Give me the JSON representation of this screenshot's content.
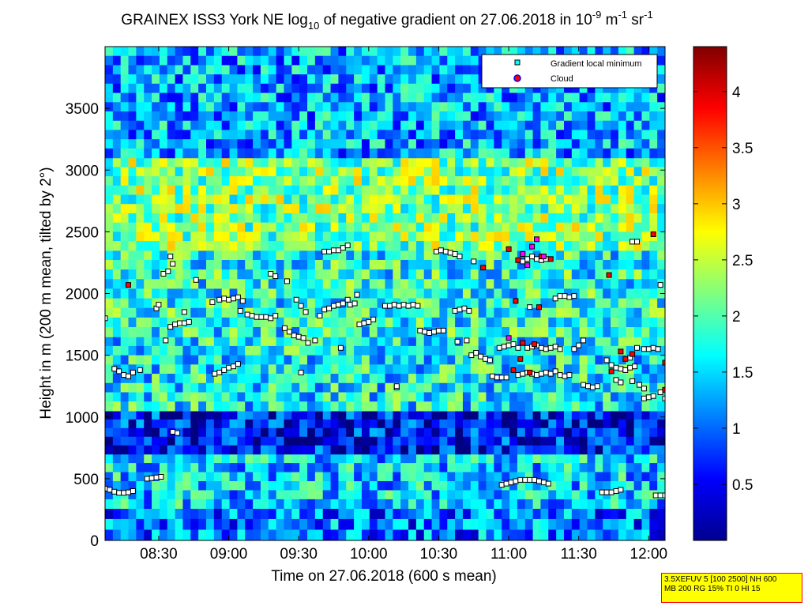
{
  "chart_data": {
    "type": "heatmap",
    "title_parts": {
      "pre": "GRAINEX ISS3 York NE log",
      "sub": "10",
      "mid": " of negative gradient on 27.06.2018 in 10",
      "sup1": "-9",
      "mid2": " m",
      "sup2": "-1",
      "mid3": " sr",
      "sup3": "-1"
    },
    "xlabel": "Time on 27.06.2018 (600 s mean)",
    "ylabel": "Height in m (200 m mean, tilted by 2°)",
    "xlim": [
      "08:07",
      "12:07"
    ],
    "ylim": [
      0,
      4000
    ],
    "x_ticks": [
      {
        "t": "08:30",
        "label": "08:30"
      },
      {
        "t": "09:00",
        "label": "09:00"
      },
      {
        "t": "09:30",
        "label": "09:30"
      },
      {
        "t": "10:00",
        "label": "10:00"
      },
      {
        "t": "10:30",
        "label": "10:30"
      },
      {
        "t": "11:00",
        "label": "11:00"
      },
      {
        "t": "11:30",
        "label": "11:30"
      },
      {
        "t": "12:00",
        "label": "12:00"
      }
    ],
    "y_ticks": [
      {
        "v": 0,
        "label": "0"
      },
      {
        "v": 500,
        "label": "500"
      },
      {
        "v": 1000,
        "label": "1000"
      },
      {
        "v": 1500,
        "label": "1500"
      },
      {
        "v": 2000,
        "label": "2000"
      },
      {
        "v": 2500,
        "label": "2500"
      },
      {
        "v": 3000,
        "label": "3000"
      },
      {
        "v": 3500,
        "label": "3500"
      }
    ],
    "colorbar": {
      "colormap": "jet",
      "range": [
        0,
        4.4
      ],
      "ticks": [
        {
          "v": 0.5,
          "label": "0.5"
        },
        {
          "v": 1,
          "label": "1"
        },
        {
          "v": 1.5,
          "label": "1.5"
        },
        {
          "v": 2,
          "label": "2"
        },
        {
          "v": 2.5,
          "label": "2.5"
        },
        {
          "v": 3,
          "label": "3"
        },
        {
          "v": 3.5,
          "label": "3.5"
        },
        {
          "v": 4,
          "label": "4"
        }
      ]
    },
    "legend": {
      "position": "top-right",
      "entries": [
        {
          "label": "Gradient local minimum",
          "marker": "square",
          "color": "#00ffff"
        },
        {
          "label": "Cloud",
          "marker": "circle",
          "color": "#ff0000"
        }
      ]
    },
    "colors": {
      "background": "#00008f",
      "marker_fill": "#ffffff",
      "marker_edge": "#000000",
      "cloud": "#ff0000",
      "cloud_magenta": "#ff00ff"
    },
    "heatmap_layers": [
      {
        "h0": 0,
        "h1": 260,
        "value": 1.05
      },
      {
        "h0": 260,
        "h1": 700,
        "value": 1.45
      },
      {
        "h0": 700,
        "h1": 1050,
        "value": 0.6
      },
      {
        "h0": 1050,
        "h1": 1650,
        "value": 1.65
      },
      {
        "h0": 1650,
        "h1": 2350,
        "value": 1.75
      },
      {
        "h0": 2350,
        "h1": 3100,
        "value": 2.2
      },
      {
        "h0": 3100,
        "h1": 4000,
        "value": 1.3
      }
    ],
    "series": [
      {
        "name": "Gradient local minimum",
        "points": [
          [
            "08:07",
            1800
          ],
          [
            "08:07",
            420
          ],
          [
            "08:09",
            410
          ],
          [
            "08:11",
            395
          ],
          [
            "08:13",
            385
          ],
          [
            "08:15",
            385
          ],
          [
            "08:17",
            390
          ],
          [
            "08:19",
            400
          ],
          [
            "08:11",
            1390
          ],
          [
            "08:13",
            1370
          ],
          [
            "08:15",
            1340
          ],
          [
            "08:17",
            1330
          ],
          [
            "08:19",
            1360
          ],
          [
            "08:22",
            1380
          ],
          [
            "08:25",
            500
          ],
          [
            "08:27",
            505
          ],
          [
            "08:29",
            510
          ],
          [
            "08:31",
            515
          ],
          [
            "08:29",
            1880
          ],
          [
            "08:30",
            1910
          ],
          [
            "08:32",
            2160
          ],
          [
            "08:34",
            2180
          ],
          [
            "08:36",
            2240
          ],
          [
            "08:35",
            2300
          ],
          [
            "08:33",
            1620
          ],
          [
            "08:35",
            1730
          ],
          [
            "08:37",
            1750
          ],
          [
            "08:39",
            1760
          ],
          [
            "08:41",
            1760
          ],
          [
            "08:43",
            1770
          ],
          [
            "08:36",
            880
          ],
          [
            "08:38",
            870
          ],
          [
            "08:41",
            1850
          ],
          [
            "08:46",
            2110
          ],
          [
            "08:54",
            1350
          ],
          [
            "08:56",
            1360
          ],
          [
            "08:58",
            1380
          ],
          [
            "09:00",
            1400
          ],
          [
            "09:02",
            1410
          ],
          [
            "09:04",
            1430
          ],
          [
            "08:53",
            1930
          ],
          [
            "08:56",
            1950
          ],
          [
            "08:58",
            1960
          ],
          [
            "09:00",
            1950
          ],
          [
            "09:02",
            1960
          ],
          [
            "09:04",
            1970
          ],
          [
            "09:06",
            1940
          ],
          [
            "09:05",
            1860
          ],
          [
            "09:08",
            1830
          ],
          [
            "09:10",
            1820
          ],
          [
            "09:12",
            1810
          ],
          [
            "09:14",
            1810
          ],
          [
            "09:16",
            1810
          ],
          [
            "09:18",
            1800
          ],
          [
            "09:20",
            1820
          ],
          [
            "09:18",
            2160
          ],
          [
            "09:20",
            2140
          ],
          [
            "09:25",
            2100
          ],
          [
            "09:24",
            1720
          ],
          [
            "09:26",
            1690
          ],
          [
            "09:28",
            1660
          ],
          [
            "09:30",
            1650
          ],
          [
            "09:32",
            1640
          ],
          [
            "09:34",
            1600
          ],
          [
            "09:37",
            1620
          ],
          [
            "09:29",
            1950
          ],
          [
            "09:31",
            1900
          ],
          [
            "09:33",
            1850
          ],
          [
            "09:31",
            1360
          ],
          [
            "09:39",
            1820
          ],
          [
            "09:41",
            1870
          ],
          [
            "09:43",
            1880
          ],
          [
            "09:45",
            1900
          ],
          [
            "09:47",
            1910
          ],
          [
            "09:49",
            1920
          ],
          [
            "09:51",
            1950
          ],
          [
            "09:41",
            2340
          ],
          [
            "09:43",
            2340
          ],
          [
            "09:45",
            2350
          ],
          [
            "09:47",
            2350
          ],
          [
            "09:49",
            2370
          ],
          [
            "09:51",
            2390
          ],
          [
            "09:48",
            1560
          ],
          [
            "09:52",
            1910
          ],
          [
            "09:54",
            1920
          ],
          [
            "09:55",
            1990
          ],
          [
            "09:56",
            1750
          ],
          [
            "09:58",
            1760
          ],
          [
            "10:00",
            1770
          ],
          [
            "10:02",
            1790
          ],
          [
            "10:07",
            1900
          ],
          [
            "10:09",
            1900
          ],
          [
            "10:11",
            1910
          ],
          [
            "10:13",
            1900
          ],
          [
            "10:15",
            1910
          ],
          [
            "10:17",
            1900
          ],
          [
            "10:19",
            1910
          ],
          [
            "10:21",
            1900
          ],
          [
            "10:12",
            1240
          ],
          [
            "10:12",
            1250
          ],
          [
            "10:22",
            1700
          ],
          [
            "10:24",
            1690
          ],
          [
            "10:26",
            1680
          ],
          [
            "10:28",
            1690
          ],
          [
            "10:30",
            1700
          ],
          [
            "10:32",
            1700
          ],
          [
            "10:29",
            2340
          ],
          [
            "10:31",
            2350
          ],
          [
            "10:33",
            2340
          ],
          [
            "10:35",
            2330
          ],
          [
            "10:37",
            2320
          ],
          [
            "10:39",
            2300
          ],
          [
            "10:37",
            1860
          ],
          [
            "10:39",
            1870
          ],
          [
            "10:41",
            1880
          ],
          [
            "10:43",
            1860
          ],
          [
            "10:38",
            1610
          ],
          [
            "10:42",
            1620
          ],
          [
            "10:45",
            2260
          ],
          [
            "10:44",
            1500
          ],
          [
            "10:46",
            1520
          ],
          [
            "10:48",
            1490
          ],
          [
            "10:50",
            1470
          ],
          [
            "10:52",
            1460
          ],
          [
            "10:53",
            1330
          ],
          [
            "10:55",
            1320
          ],
          [
            "10:57",
            1320
          ],
          [
            "10:59",
            1320
          ],
          [
            "10:56",
            1560
          ],
          [
            "10:58",
            1570
          ],
          [
            "11:00",
            1580
          ],
          [
            "11:02",
            1590
          ],
          [
            "11:04",
            1560
          ],
          [
            "10:57",
            450
          ],
          [
            "10:59",
            460
          ],
          [
            "11:01",
            470
          ],
          [
            "11:03",
            480
          ],
          [
            "11:05",
            490
          ],
          [
            "11:07",
            490
          ],
          [
            "11:09",
            490
          ],
          [
            "11:11",
            490
          ],
          [
            "11:13",
            480
          ],
          [
            "11:15",
            470
          ],
          [
            "11:17",
            460
          ],
          [
            "11:04",
            1340
          ],
          [
            "11:06",
            1350
          ],
          [
            "11:08",
            1360
          ],
          [
            "11:10",
            1350
          ],
          [
            "11:12",
            1340
          ],
          [
            "11:14",
            1350
          ],
          [
            "11:16",
            1360
          ],
          [
            "11:18",
            1350
          ],
          [
            "11:08",
            1560
          ],
          [
            "11:10",
            1570
          ],
          [
            "11:12",
            1580
          ],
          [
            "11:14",
            1560
          ],
          [
            "11:16",
            1550
          ],
          [
            "11:18",
            1560
          ],
          [
            "11:20",
            1570
          ],
          [
            "11:22",
            1550
          ],
          [
            "11:06",
            2260
          ],
          [
            "11:08",
            2280
          ],
          [
            "11:10",
            2300
          ],
          [
            "11:12",
            2280
          ],
          [
            "11:14",
            2270
          ],
          [
            "11:16",
            2280
          ],
          [
            "11:09",
            1890
          ],
          [
            "11:20",
            1960
          ],
          [
            "11:22",
            1980
          ],
          [
            "11:24",
            1980
          ],
          [
            "11:26",
            1970
          ],
          [
            "11:28",
            1980
          ],
          [
            "11:20",
            1370
          ],
          [
            "11:22",
            1340
          ],
          [
            "11:24",
            1330
          ],
          [
            "11:26",
            1340
          ],
          [
            "11:28",
            1550
          ],
          [
            "11:30",
            1580
          ],
          [
            "11:32",
            1620
          ],
          [
            "11:32",
            1260
          ],
          [
            "11:34",
            1250
          ],
          [
            "11:36",
            1240
          ],
          [
            "11:38",
            1250
          ],
          [
            "11:40",
            390
          ],
          [
            "11:42",
            390
          ],
          [
            "11:44",
            390
          ],
          [
            "11:46",
            400
          ],
          [
            "11:48",
            410
          ],
          [
            "11:42",
            1460
          ],
          [
            "11:44",
            1420
          ],
          [
            "11:46",
            1400
          ],
          [
            "11:48",
            1390
          ],
          [
            "11:50",
            1380
          ],
          [
            "11:52",
            1400
          ],
          [
            "11:54",
            1410
          ],
          [
            "11:46",
            1300
          ],
          [
            "11:48",
            1280
          ],
          [
            "11:53",
            1290
          ],
          [
            "11:56",
            1260
          ],
          [
            "11:58",
            1150
          ],
          [
            "12:00",
            1160
          ],
          [
            "12:02",
            1170
          ],
          [
            "11:52",
            1480
          ],
          [
            "11:55",
            1560
          ],
          [
            "11:58",
            1550
          ],
          [
            "12:00",
            1550
          ],
          [
            "12:02",
            1560
          ],
          [
            "12:04",
            1550
          ],
          [
            "11:53",
            2420
          ],
          [
            "11:55",
            2420
          ],
          [
            "11:58",
            1230
          ],
          [
            "12:03",
            365
          ],
          [
            "12:05",
            365
          ],
          [
            "12:07",
            365
          ],
          [
            "12:05",
            2070
          ],
          [
            "12:05",
            1200
          ],
          [
            "12:07",
            1150
          ]
        ]
      },
      {
        "name": "Cloud",
        "points": [
          [
            "08:17",
            2070
          ],
          [
            "10:49",
            2210
          ],
          [
            "11:00",
            2360
          ],
          [
            "11:02",
            1380
          ],
          [
            "11:03",
            1940
          ],
          [
            "11:04",
            2270
          ],
          [
            "11:05",
            1470
          ],
          [
            "11:06",
            1600
          ],
          [
            "11:09",
            1360
          ],
          [
            "11:11",
            1590
          ],
          [
            "11:13",
            1890
          ],
          [
            "11:14",
            2300
          ],
          [
            "11:18",
            2280
          ],
          [
            "11:43",
            2150
          ],
          [
            "11:44",
            1370
          ],
          [
            "11:48",
            1530
          ],
          [
            "11:50",
            1470
          ],
          [
            "11:53",
            1510
          ],
          [
            "12:02",
            2480
          ],
          [
            "12:07",
            1440
          ],
          [
            "12:07",
            1220
          ]
        ]
      },
      {
        "name": "",
        "color": "magenta",
        "points": [
          [
            "11:00",
            1640
          ],
          [
            "11:06",
            2320
          ],
          [
            "11:08",
            2230
          ],
          [
            "11:10",
            2380
          ],
          [
            "11:12",
            2440
          ],
          [
            "11:15",
            2300
          ]
        ]
      }
    ],
    "notes": "3.5XEFUV 5 [100 2500] NH 600\nMB 200 RG 15% TI 0 HI 15"
  },
  "annotation": {
    "line1": "3.5XEFUV 5 [100 2500] NH 600",
    "line2": "MB 200 RG 15% TI 0 HI 15"
  }
}
